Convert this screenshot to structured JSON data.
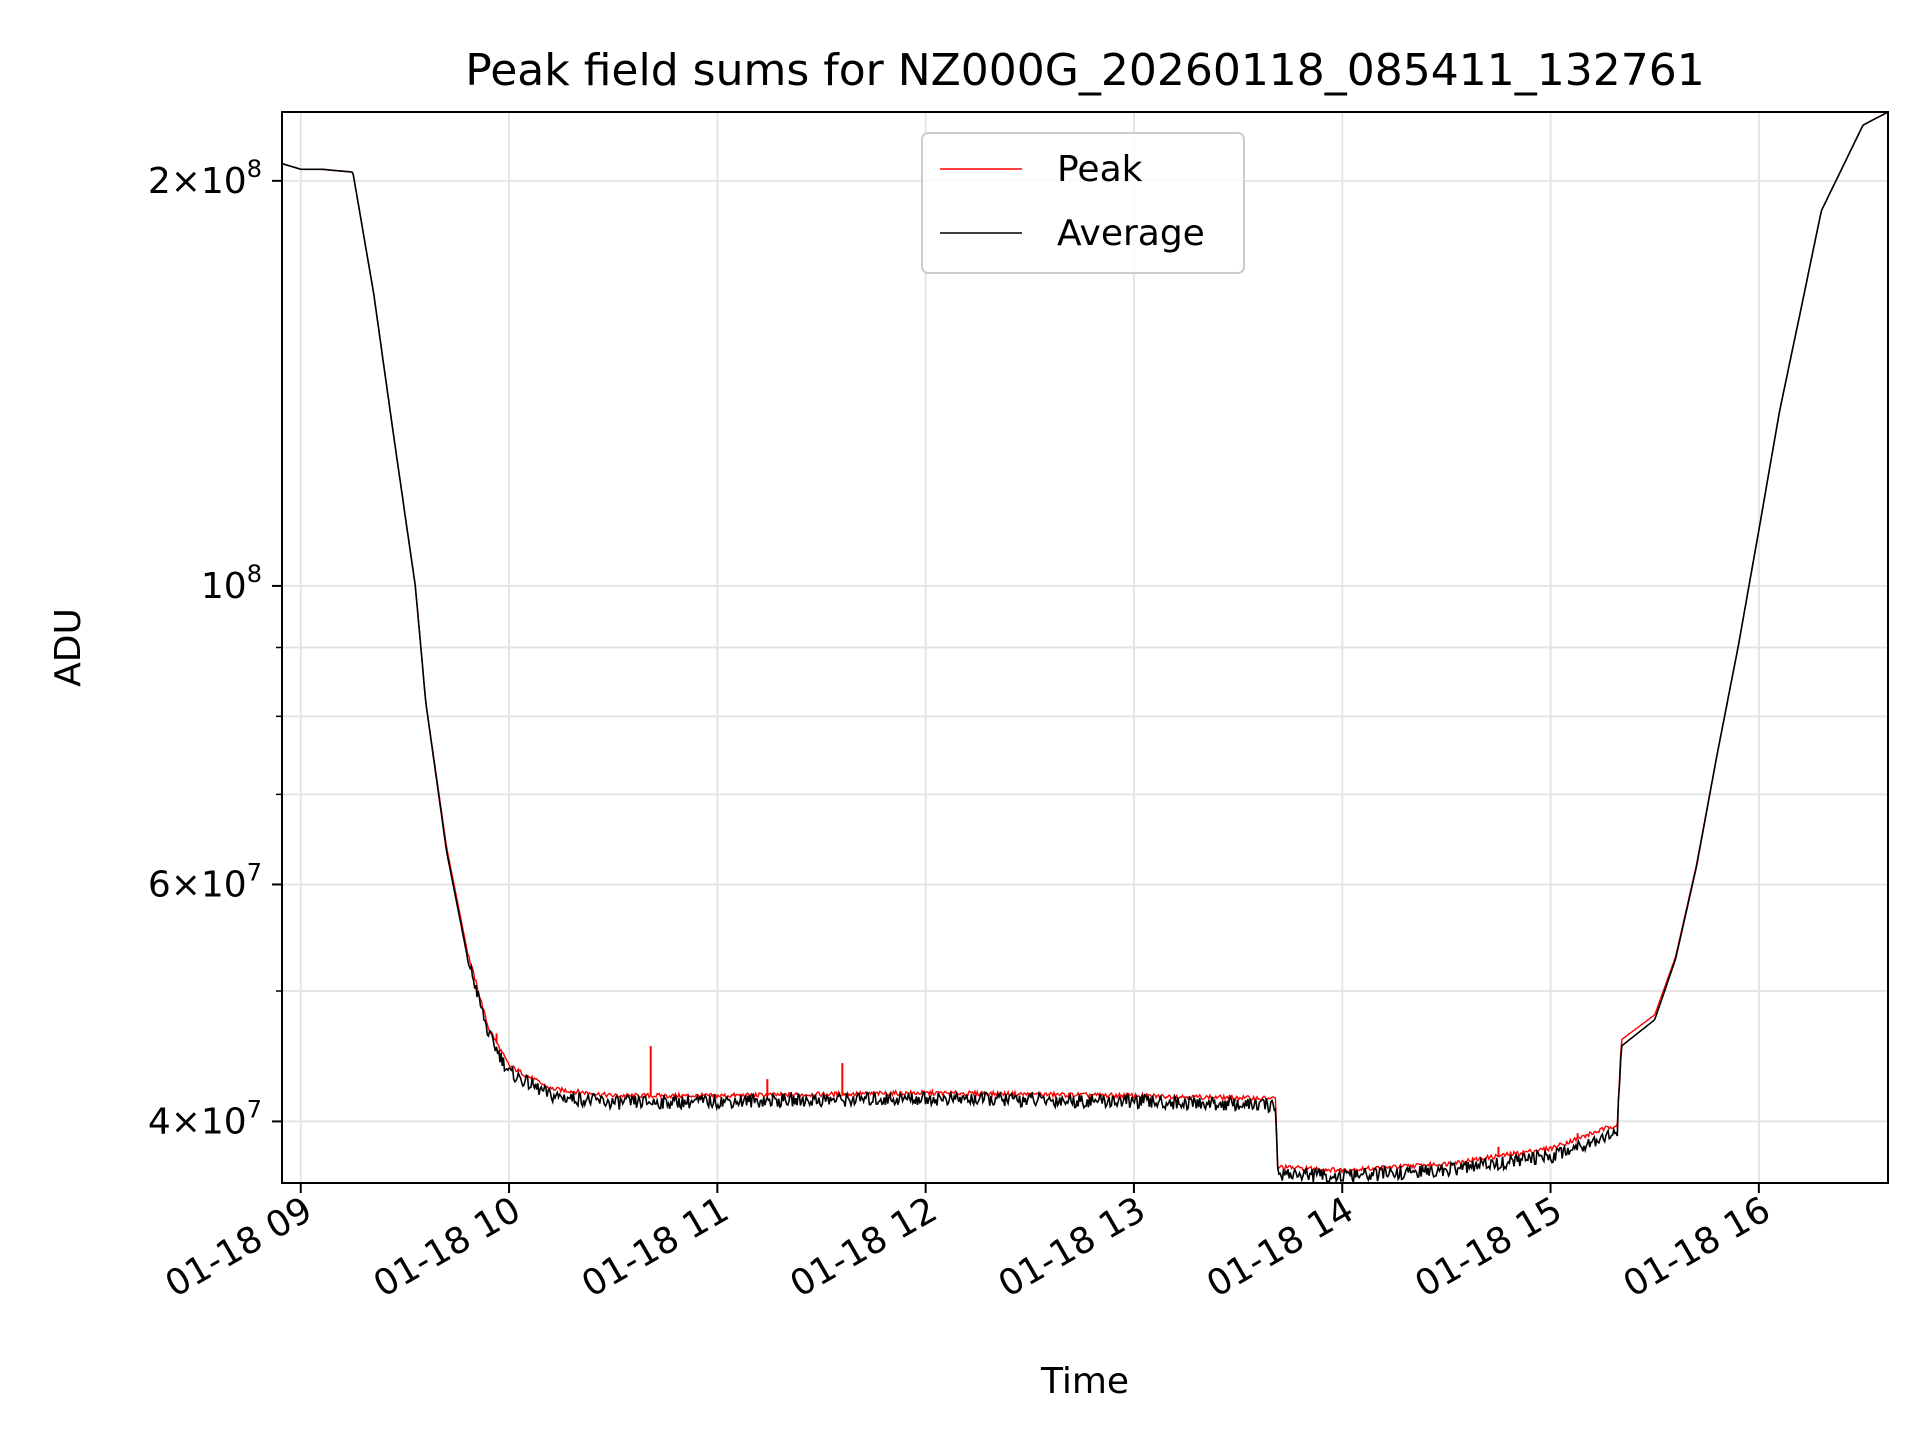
{
  "chart_data": {
    "type": "line",
    "title": "Peak field sums for NZ000G_20260118_085411_132761",
    "xlabel": "Time",
    "ylabel": "ADU",
    "yscale": "log",
    "ylim": [
      36000000,
      225000000
    ],
    "xlim": [
      8.91,
      16.62
    ],
    "grid": true,
    "legend": {
      "placement": "upper-center",
      "entries": [
        "Peak",
        "Average"
      ]
    },
    "x_ticks": [
      {
        "value": 9,
        "label": "01-18 09"
      },
      {
        "value": 10,
        "label": "01-18 10"
      },
      {
        "value": 11,
        "label": "01-18 11"
      },
      {
        "value": 12,
        "label": "01-18 12"
      },
      {
        "value": 13,
        "label": "01-18 13"
      },
      {
        "value": 14,
        "label": "01-18 14"
      },
      {
        "value": 15,
        "label": "01-18 15"
      },
      {
        "value": 16,
        "label": "01-18 16"
      }
    ],
    "y_ticks": [
      {
        "value": 40000000,
        "mantissa": "4",
        "exp": "7"
      },
      {
        "value": 60000000,
        "mantissa": "6",
        "exp": "7"
      },
      {
        "value": 100000000,
        "mantissa": "",
        "exp": "8"
      },
      {
        "value": 200000000,
        "mantissa": "2",
        "exp": "8"
      }
    ],
    "y_minor": [
      50000000,
      70000000,
      80000000,
      90000000
    ],
    "series": [
      {
        "name": "Peak",
        "color": "#ff0000",
        "x": [
          8.91,
          9.0,
          9.1,
          9.25,
          9.35,
          9.45,
          9.55,
          9.6,
          9.7,
          9.8,
          9.9,
          10.0,
          10.2,
          10.5,
          11.0,
          12.0,
          13.0,
          13.68,
          13.69,
          14.0,
          14.5,
          15.0,
          15.32,
          15.34,
          15.5,
          15.6,
          15.7,
          15.8,
          15.9,
          16.0,
          16.1,
          16.2,
          16.3,
          16.5,
          16.62
        ],
        "y": [
          206000000,
          204000000,
          204000000,
          203000000,
          165000000,
          128000000,
          100000000,
          82000000,
          64000000,
          53500000,
          47000000,
          44000000,
          42300000,
          41800000,
          41800000,
          42000000,
          41800000,
          41600000,
          37000000,
          36800000,
          37200000,
          38200000,
          39800000,
          46000000,
          48000000,
          53000000,
          62000000,
          75000000,
          90000000,
          110000000,
          135000000,
          160000000,
          190000000,
          220000000,
          225000000
        ]
      },
      {
        "name": "Average",
        "color": "#000000",
        "x": [
          8.91,
          9.0,
          9.1,
          9.25,
          9.35,
          9.45,
          9.55,
          9.6,
          9.7,
          9.8,
          9.9,
          10.0,
          10.2,
          10.5,
          11.0,
          12.0,
          13.0,
          13.68,
          13.69,
          14.0,
          14.5,
          15.0,
          15.32,
          15.34,
          15.5,
          15.6,
          15.7,
          15.8,
          15.9,
          16.0,
          16.1,
          16.2,
          16.3,
          16.5,
          16.62
        ],
        "y": [
          206000000,
          204000000,
          204000000,
          203000000,
          165000000,
          128000000,
          100000000,
          82000000,
          63500000,
          53000000,
          46500000,
          43500000,
          41800000,
          41300000,
          41400000,
          41600000,
          41400000,
          41100000,
          36600000,
          36400000,
          36800000,
          37700000,
          39300000,
          45500000,
          47600000,
          52800000,
          61800000,
          75000000,
          90000000,
          110000000,
          135000000,
          160000000,
          190000000,
          220000000,
          225000000
        ]
      }
    ],
    "peak_spikes": [
      {
        "x": 9.94,
        "y": 46500000
      },
      {
        "x": 10.68,
        "y": 45500000
      },
      {
        "x": 11.24,
        "y": 43000000
      },
      {
        "x": 11.6,
        "y": 44200000
      },
      {
        "x": 14.75,
        "y": 38300000
      },
      {
        "x": 15.13,
        "y": 39200000
      }
    ]
  }
}
